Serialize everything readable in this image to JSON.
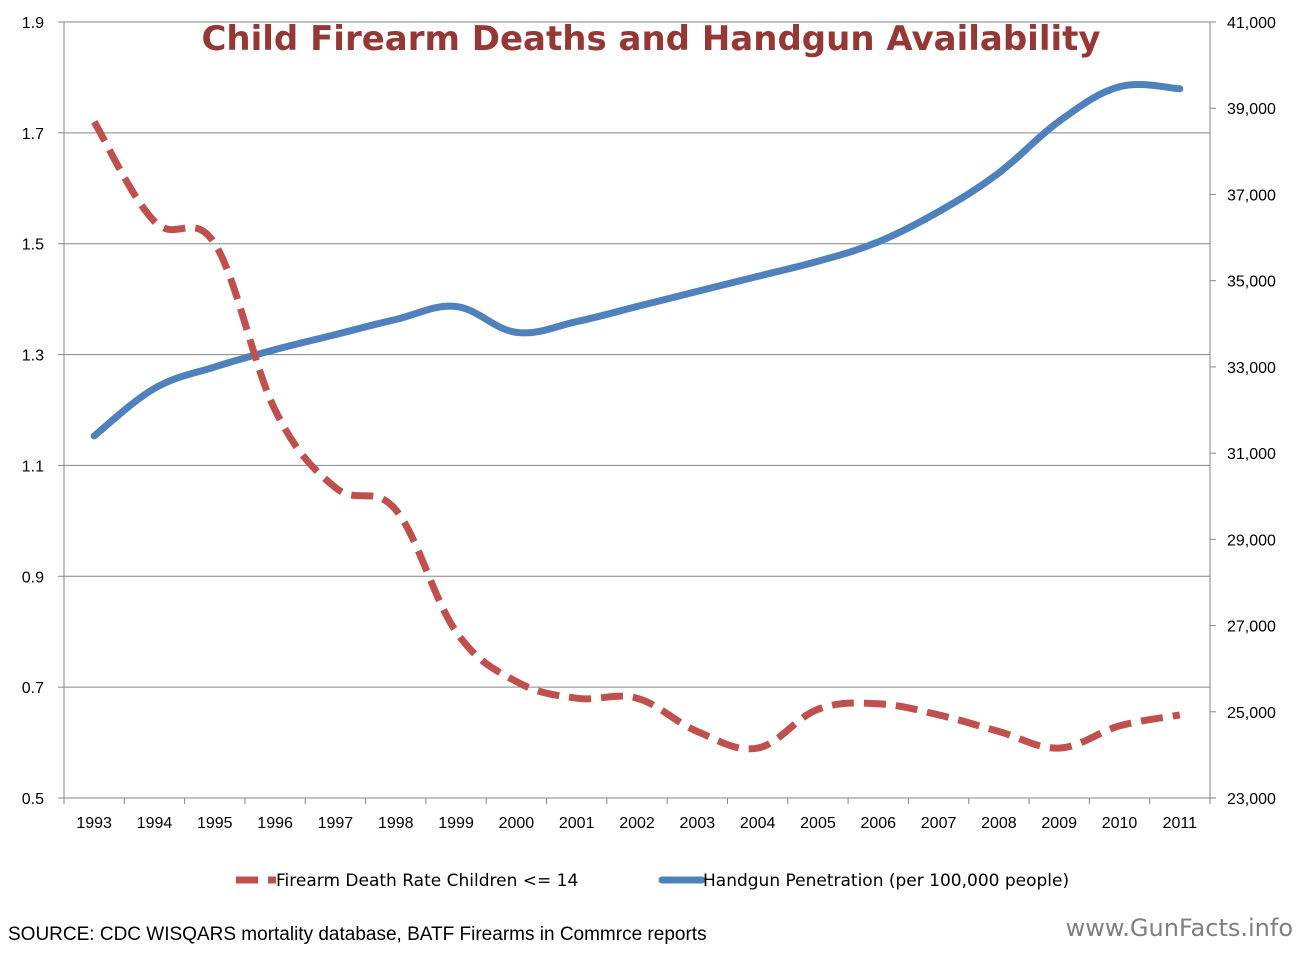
{
  "chart_data": {
    "type": "line",
    "title": "Child Firearm Deaths and Handgun Availability",
    "categories": [
      "1993",
      "1994",
      "1995",
      "1996",
      "1997",
      "1998",
      "1999",
      "2000",
      "2001",
      "2002",
      "2003",
      "2004",
      "2005",
      "2006",
      "2007",
      "2008",
      "2009",
      "2010",
      "2011"
    ],
    "series": [
      {
        "name": "Firearm Death Rate Children <= 14",
        "axis": "left",
        "style": "dashed",
        "color": "#c0504d",
        "values": [
          1.72,
          1.54,
          1.5,
          1.2,
          1.06,
          1.02,
          0.8,
          0.71,
          0.68,
          0.68,
          0.62,
          0.59,
          0.66,
          0.67,
          0.65,
          0.62,
          0.59,
          0.63,
          0.65
        ]
      },
      {
        "name": "Handgun Penetration (per 100,000 people)",
        "axis": "right",
        "style": "solid",
        "color": "#4f81bd",
        "values": [
          31400,
          32500,
          33000,
          33400,
          33750,
          34100,
          34400,
          33800,
          34050,
          34400,
          34750,
          35100,
          35450,
          35900,
          36600,
          37500,
          38700,
          39500,
          39450
        ]
      }
    ],
    "y_left": {
      "ylim": [
        0.5,
        1.9
      ],
      "ticks": [
        "0.5",
        "0.7",
        "0.9",
        "1.1",
        "1.3",
        "1.5",
        "1.7",
        "1.9"
      ]
    },
    "y_right": {
      "ylim": [
        23000,
        41000
      ],
      "ticks": [
        "23,000",
        "25,000",
        "27,000",
        "29,000",
        "31,000",
        "33,000",
        "35,000",
        "37,000",
        "39,000",
        "41,000"
      ]
    },
    "grid": true,
    "legend_placement": "bottom"
  },
  "footer": {
    "source": "SOURCE: CDC WISQARS mortality database, BATF Firearms in Commrce reports",
    "watermark": "www.GunFacts.info"
  }
}
